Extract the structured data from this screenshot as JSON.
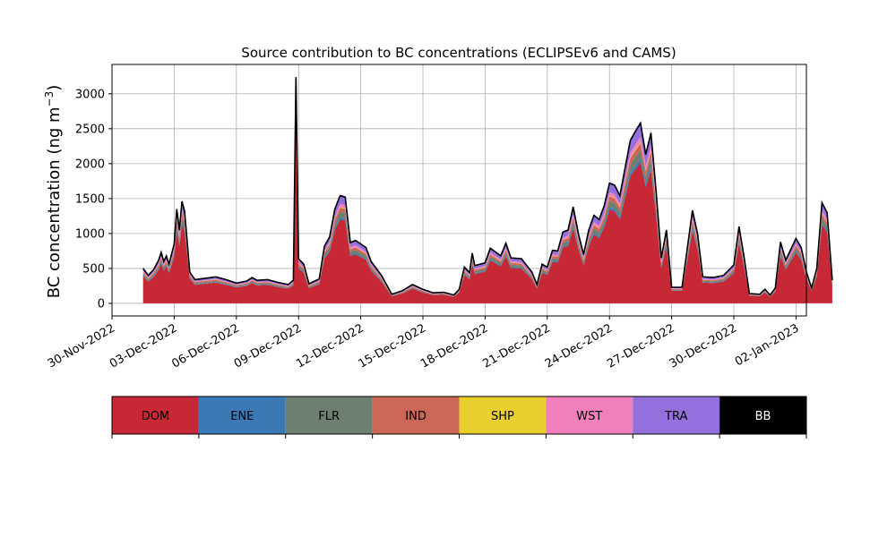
{
  "chart_data": {
    "type": "area",
    "stacked": true,
    "title": "Source contribution to BC concentrations (ECLIPSEv6 and CAMS)",
    "ylabel": "BC concentration (ng m",
    "ylabel_unit_exp": "−3",
    "ylabel_close": ")",
    "xlabel": "",
    "grid": true,
    "x_axis": {
      "type": "date",
      "range": [
        "2022-11-30T00:00",
        "2023-01-02T12:00"
      ],
      "ticks": [
        {
          "value": "2022-11-30",
          "label": "30-Nov-2022"
        },
        {
          "value": "2022-12-03",
          "label": "03-Dec-2022"
        },
        {
          "value": "2022-12-06",
          "label": "06-Dec-2022"
        },
        {
          "value": "2022-12-09",
          "label": "09-Dec-2022"
        },
        {
          "value": "2022-12-12",
          "label": "12-Dec-2022"
        },
        {
          "value": "2022-12-15",
          "label": "15-Dec-2022"
        },
        {
          "value": "2022-12-18",
          "label": "18-Dec-2022"
        },
        {
          "value": "2022-12-21",
          "label": "21-Dec-2022"
        },
        {
          "value": "2022-12-24",
          "label": "24-Dec-2022"
        },
        {
          "value": "2022-12-27",
          "label": "27-Dec-2022"
        },
        {
          "value": "2022-12-30",
          "label": "30-Dec-2022"
        },
        {
          "value": "2023-01-02",
          "label": "02-Jan-2023"
        }
      ]
    },
    "y_axis": {
      "range": [
        -180,
        3420
      ],
      "ticks": [
        {
          "value": 0,
          "label": "0"
        },
        {
          "value": 500,
          "label": "500"
        },
        {
          "value": 1000,
          "label": "1000"
        },
        {
          "value": 1500,
          "label": "1500"
        },
        {
          "value": 2000,
          "label": "2000"
        },
        {
          "value": 2500,
          "label": "2500"
        },
        {
          "value": 3000,
          "label": "3000"
        }
      ]
    },
    "legend_placement": "below",
    "total_series": {
      "name": "BB",
      "color": "#000000",
      "points": [
        [
          "2022-12-01T12:00",
          500
        ],
        [
          "2022-12-01T18:00",
          400
        ],
        [
          "2022-12-02T00:00",
          480
        ],
        [
          "2022-12-02T06:00",
          620
        ],
        [
          "2022-12-02T09:00",
          730
        ],
        [
          "2022-12-02T12:00",
          600
        ],
        [
          "2022-12-02T15:00",
          680
        ],
        [
          "2022-12-02T18:00",
          560
        ],
        [
          "2022-12-03T00:00",
          850
        ],
        [
          "2022-12-03T03:00",
          1350
        ],
        [
          "2022-12-03T06:00",
          1050
        ],
        [
          "2022-12-03T09:00",
          1460
        ],
        [
          "2022-12-03T12:00",
          1320
        ],
        [
          "2022-12-03T18:00",
          450
        ],
        [
          "2022-12-04T00:00",
          340
        ],
        [
          "2022-12-04T12:00",
          360
        ],
        [
          "2022-12-05T00:00",
          380
        ],
        [
          "2022-12-05T12:00",
          340
        ],
        [
          "2022-12-06T00:00",
          290
        ],
        [
          "2022-12-06T12:00",
          320
        ],
        [
          "2022-12-06T18:00",
          370
        ],
        [
          "2022-12-07T00:00",
          330
        ],
        [
          "2022-12-07T12:00",
          340
        ],
        [
          "2022-12-08T00:00",
          300
        ],
        [
          "2022-12-08T12:00",
          270
        ],
        [
          "2022-12-08T18:00",
          330
        ],
        [
          "2022-12-08T21:00",
          3240
        ],
        [
          "2022-12-09T00:00",
          640
        ],
        [
          "2022-12-09T06:00",
          560
        ],
        [
          "2022-12-09T12:00",
          280
        ],
        [
          "2022-12-10T00:00",
          350
        ],
        [
          "2022-12-10T06:00",
          820
        ],
        [
          "2022-12-10T12:00",
          950
        ],
        [
          "2022-12-10T18:00",
          1350
        ],
        [
          "2022-12-11T00:00",
          1540
        ],
        [
          "2022-12-11T06:00",
          1520
        ],
        [
          "2022-12-11T12:00",
          870
        ],
        [
          "2022-12-11T18:00",
          900
        ],
        [
          "2022-12-12T06:00",
          800
        ],
        [
          "2022-12-12T12:00",
          600
        ],
        [
          "2022-12-13T00:00",
          400
        ],
        [
          "2022-12-13T12:00",
          130
        ],
        [
          "2022-12-14T00:00",
          180
        ],
        [
          "2022-12-14T12:00",
          270
        ],
        [
          "2022-12-15T00:00",
          200
        ],
        [
          "2022-12-15T12:00",
          150
        ],
        [
          "2022-12-16T00:00",
          160
        ],
        [
          "2022-12-16T12:00",
          120
        ],
        [
          "2022-12-16T18:00",
          200
        ],
        [
          "2022-12-17T00:00",
          520
        ],
        [
          "2022-12-17T06:00",
          440
        ],
        [
          "2022-12-17T09:00",
          720
        ],
        [
          "2022-12-17T12:00",
          540
        ],
        [
          "2022-12-18T00:00",
          580
        ],
        [
          "2022-12-18T06:00",
          790
        ],
        [
          "2022-12-18T18:00",
          680
        ],
        [
          "2022-12-19T00:00",
          860
        ],
        [
          "2022-12-19T06:00",
          650
        ],
        [
          "2022-12-19T18:00",
          640
        ],
        [
          "2022-12-20T06:00",
          450
        ],
        [
          "2022-12-20T12:00",
          270
        ],
        [
          "2022-12-20T18:00",
          560
        ],
        [
          "2022-12-21T00:00",
          520
        ],
        [
          "2022-12-21T06:00",
          760
        ],
        [
          "2022-12-21T12:00",
          750
        ],
        [
          "2022-12-21T18:00",
          1020
        ],
        [
          "2022-12-22T00:00",
          1050
        ],
        [
          "2022-12-22T06:00",
          1380
        ],
        [
          "2022-12-22T12:00",
          1000
        ],
        [
          "2022-12-22T18:00",
          700
        ],
        [
          "2022-12-23T00:00",
          1050
        ],
        [
          "2022-12-23T06:00",
          1260
        ],
        [
          "2022-12-23T12:00",
          1200
        ],
        [
          "2022-12-23T18:00",
          1400
        ],
        [
          "2022-12-24T00:00",
          1720
        ],
        [
          "2022-12-24T06:00",
          1690
        ],
        [
          "2022-12-24T12:00",
          1540
        ],
        [
          "2022-12-25T00:00",
          2330
        ],
        [
          "2022-12-25T06:00",
          2460
        ],
        [
          "2022-12-25T12:00",
          2580
        ],
        [
          "2022-12-25T18:00",
          2130
        ],
        [
          "2022-12-26T00:00",
          2440
        ],
        [
          "2022-12-26T06:00",
          1600
        ],
        [
          "2022-12-26T12:00",
          650
        ],
        [
          "2022-12-26T18:00",
          1050
        ],
        [
          "2022-12-27T00:00",
          230
        ],
        [
          "2022-12-27T12:00",
          230
        ],
        [
          "2022-12-28T00:00",
          1330
        ],
        [
          "2022-12-28T06:00",
          1000
        ],
        [
          "2022-12-28T12:00",
          380
        ],
        [
          "2022-12-29T00:00",
          370
        ],
        [
          "2022-12-29T12:00",
          400
        ],
        [
          "2022-12-30T00:00",
          550
        ],
        [
          "2022-12-30T06:00",
          1100
        ],
        [
          "2022-12-30T12:00",
          650
        ],
        [
          "2022-12-30T18:00",
          140
        ],
        [
          "2022-12-31T06:00",
          130
        ],
        [
          "2022-12-31T12:00",
          200
        ],
        [
          "2022-12-31T18:00",
          120
        ],
        [
          "2023-01-01T00:00",
          220
        ],
        [
          "2023-01-01T06:00",
          880
        ],
        [
          "2023-01-01T12:00",
          620
        ],
        [
          "2023-01-02T00:00",
          930
        ],
        [
          "2023-01-02T06:00",
          800
        ],
        [
          "2023-01-02T12:00",
          450
        ],
        [
          "2023-01-02T18:00",
          220
        ],
        [
          "2023-01-03T00:00",
          500
        ],
        [
          "2023-01-03T06:00",
          1440
        ],
        [
          "2023-01-03T12:00",
          1300
        ],
        [
          "2023-01-03T18:00",
          330
        ]
      ]
    },
    "stack_fractions": {
      "note_free": true,
      "DOM": 0.78,
      "ENE": 0.02,
      "FLR": 0.05,
      "IND": 0.04,
      "SHP": 0.005,
      "WST": 0.03,
      "TRA": 0.085
    },
    "legend": [
      {
        "name": "DOM",
        "color": "#c62836",
        "text_color": "#000000"
      },
      {
        "name": "ENE",
        "color": "#3a79b3",
        "text_color": "#000000"
      },
      {
        "name": "FLR",
        "color": "#6d8070",
        "text_color": "#000000"
      },
      {
        "name": "IND",
        "color": "#cc6657",
        "text_color": "#000000"
      },
      {
        "name": "SHP",
        "color": "#e8cf2e",
        "text_color": "#000000"
      },
      {
        "name": "WST",
        "color": "#f17fbb",
        "text_color": "#000000"
      },
      {
        "name": "TRA",
        "color": "#9370db",
        "text_color": "#000000"
      },
      {
        "name": "BB",
        "color": "#000000",
        "text_color": "#ffffff"
      }
    ]
  }
}
